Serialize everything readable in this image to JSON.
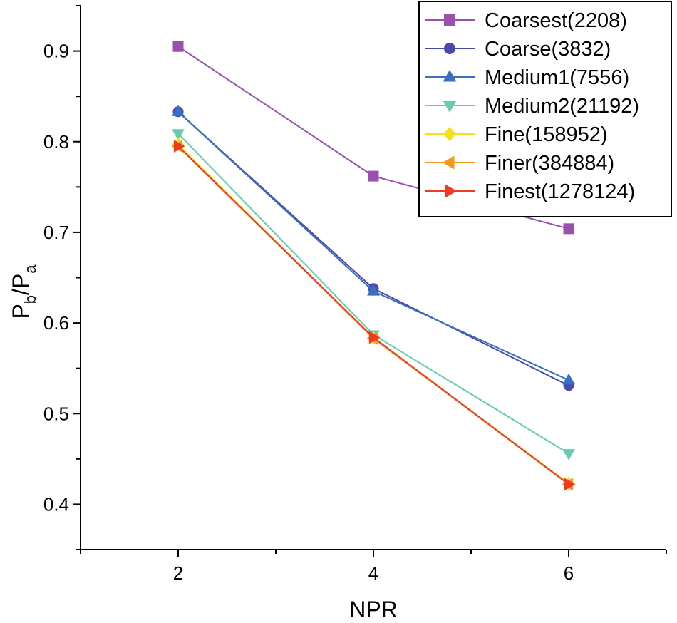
{
  "chart_data": {
    "type": "line",
    "title": "",
    "xlabel": "NPR",
    "ylabel": {
      "main": "P",
      "sub1": "b",
      "sep": "/",
      "main2": "P",
      "sub2": "a"
    },
    "x": [
      2,
      4,
      6
    ],
    "xlim": [
      1,
      7
    ],
    "ylim": [
      0.35,
      0.95
    ],
    "xticks": [
      2,
      4,
      6
    ],
    "yticks": [
      0.4,
      0.5,
      0.6,
      0.7,
      0.8,
      0.9
    ],
    "ytick_labels": [
      "0.4",
      "0.5",
      "0.6",
      "0.7",
      "0.8",
      "0.9"
    ],
    "xtick_labels": [
      "2",
      "4",
      "6"
    ],
    "grid": false,
    "legend_position": "top-right",
    "series": [
      {
        "name": "Coarsest(2208)",
        "values": [
          0.905,
          0.762,
          0.704
        ],
        "color": "#9b4fb0",
        "marker": "square"
      },
      {
        "name": "Coarse(3832)",
        "values": [
          0.833,
          0.638,
          0.531
        ],
        "color": "#4a4aaa",
        "marker": "circle"
      },
      {
        "name": "Medium1(7556)",
        "values": [
          0.833,
          0.635,
          0.537
        ],
        "color": "#3a6ec0",
        "marker": "triangle-up"
      },
      {
        "name": "Medium2(21192)",
        "values": [
          0.809,
          0.587,
          0.456
        ],
        "color": "#66ccb0",
        "marker": "triangle-down"
      },
      {
        "name": "Fine(158952)",
        "values": [
          0.797,
          0.583,
          0.423
        ],
        "color": "#f5e11a",
        "marker": "diamond"
      },
      {
        "name": "Finer(384884)",
        "values": [
          0.795,
          0.583,
          0.422
        ],
        "color": "#f5961e",
        "marker": "triangle-left"
      },
      {
        "name": "Finest(1278124)",
        "values": [
          0.795,
          0.584,
          0.422
        ],
        "color": "#ee3a24",
        "marker": "triangle-right"
      }
    ]
  }
}
